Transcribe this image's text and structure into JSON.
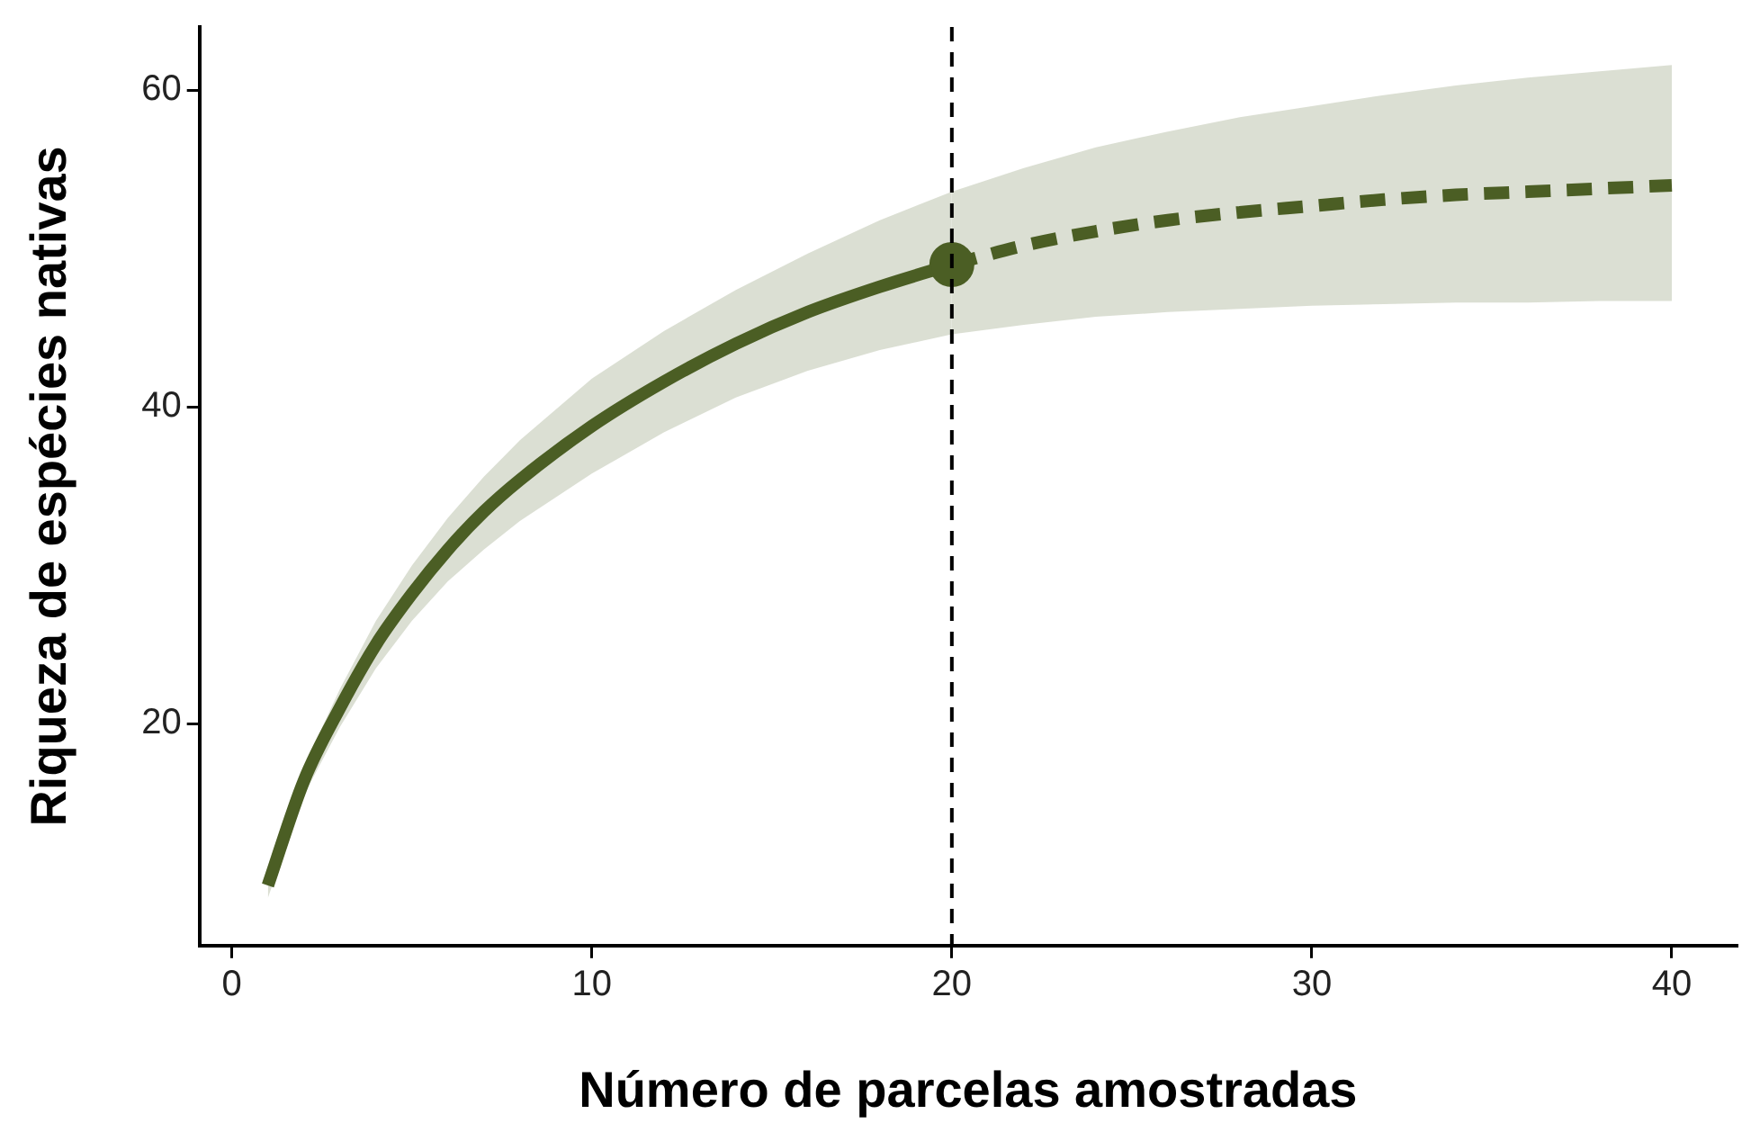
{
  "chart_data": {
    "type": "line",
    "xlabel": "Número de parcelas amostradas",
    "ylabel": "Riqueza de espécies nativas",
    "xlim": [
      -0.9,
      41.8
    ],
    "ylim": [
      6,
      64
    ],
    "xticks": [
      0,
      10,
      20,
      30,
      40
    ],
    "yticks": [
      20,
      40,
      60
    ],
    "grid": false,
    "legend": false,
    "series": [
      {
        "color": "#4b5e24",
        "line_style": "solid",
        "marker": "none",
        "x": [
          1,
          2,
          3,
          4,
          5,
          6,
          7,
          8,
          10,
          12,
          14,
          16,
          18,
          20
        ],
        "values": [
          9.8,
          16.4,
          21,
          25,
          28.2,
          31,
          33.4,
          35.4,
          38.8,
          41.6,
          44,
          46,
          47.6,
          49
        ],
        "lower": [
          9,
          15.5,
          19.8,
          23.5,
          26.5,
          29,
          31,
          32.8,
          35.8,
          38.4,
          40.6,
          42.3,
          43.6,
          44.6
        ],
        "upper": [
          10.6,
          17.3,
          22.2,
          26.5,
          30,
          33,
          35.6,
          37.9,
          41.8,
          44.8,
          47.4,
          49.7,
          51.8,
          53.6
        ]
      },
      {
        "color": "#4b5e24",
        "line_style": "dashed",
        "marker": "none",
        "x": [
          20,
          22,
          24,
          26,
          28,
          30,
          32,
          34,
          36,
          38,
          40
        ],
        "values": [
          49,
          50.2,
          51.1,
          51.8,
          52.3,
          52.7,
          53.1,
          53.4,
          53.6,
          53.8,
          54
        ],
        "lower": [
          44.6,
          45.2,
          45.7,
          46,
          46.2,
          46.4,
          46.5,
          46.6,
          46.6,
          46.7,
          46.7
        ],
        "upper": [
          53.6,
          55.1,
          56.4,
          57.4,
          58.3,
          59,
          59.7,
          60.3,
          60.8,
          61.2,
          61.6
        ]
      },
      {
        "type": "scatter",
        "color": "#4b5e24",
        "marker": "circle",
        "x": [
          20
        ],
        "values": [
          49
        ]
      }
    ],
    "ref_lines": [
      {
        "axis": "x",
        "value": 20,
        "color": "#000000",
        "line_style": "dashed"
      }
    ]
  }
}
